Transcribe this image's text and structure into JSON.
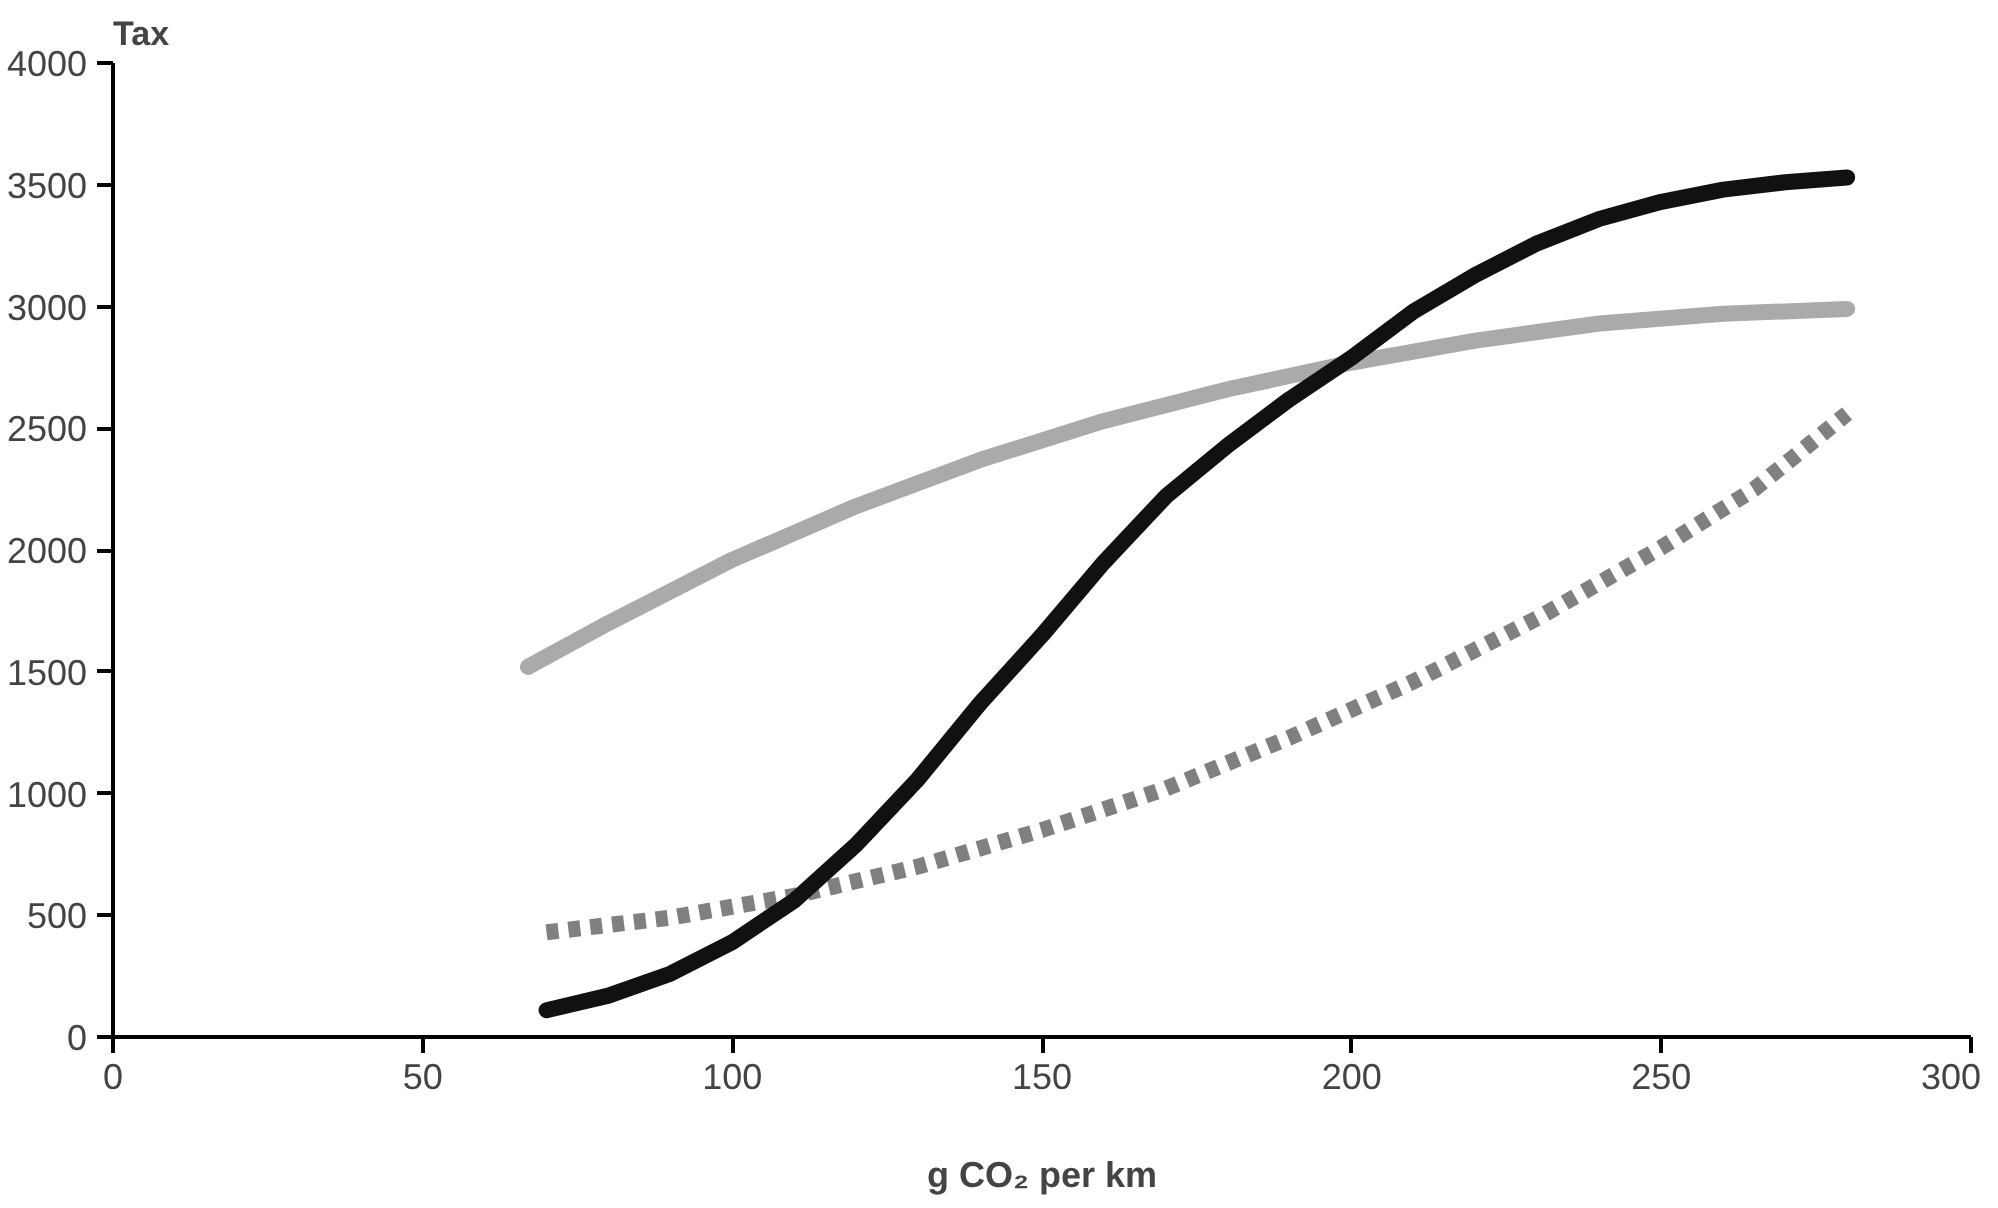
{
  "chart_data": {
    "type": "line",
    "ylabel": "Tax",
    "xlabel": "g CO₂ per km",
    "xlim": [
      0,
      300
    ],
    "ylim": [
      0,
      4000
    ],
    "xticks": [
      0,
      50,
      100,
      150,
      200,
      250,
      300
    ],
    "yticks": [
      0,
      500,
      1000,
      1500,
      2000,
      2500,
      3000,
      3500,
      4000
    ],
    "grid": false,
    "marker": "none",
    "series": [
      {
        "color": "#aaaaaa",
        "line_style": "solid",
        "x": [
          67,
          80,
          100,
          120,
          140,
          160,
          180,
          200,
          220,
          240,
          260,
          280
        ],
        "values": [
          1520,
          1700,
          1960,
          2180,
          2370,
          2530,
          2660,
          2770,
          2860,
          2930,
          2970,
          2990
        ]
      },
      {
        "color": "#808080",
        "line_style": "dotted",
        "x": [
          70,
          90,
          110,
          130,
          150,
          170,
          190,
          210,
          230,
          250,
          265,
          280
        ],
        "values": [
          430,
          490,
          580,
          700,
          850,
          1020,
          1230,
          1460,
          1720,
          2010,
          2250,
          2560
        ]
      },
      {
        "color": "#111111",
        "line_style": "solid",
        "x": [
          70,
          80,
          90,
          100,
          110,
          120,
          130,
          140,
          150,
          160,
          170,
          180,
          190,
          200,
          210,
          220,
          230,
          240,
          250,
          260,
          270,
          280
        ],
        "values": [
          110,
          170,
          260,
          390,
          560,
          790,
          1060,
          1370,
          1650,
          1950,
          2220,
          2430,
          2620,
          2790,
          2980,
          3130,
          3260,
          3360,
          3430,
          3480,
          3510,
          3530
        ]
      }
    ]
  }
}
